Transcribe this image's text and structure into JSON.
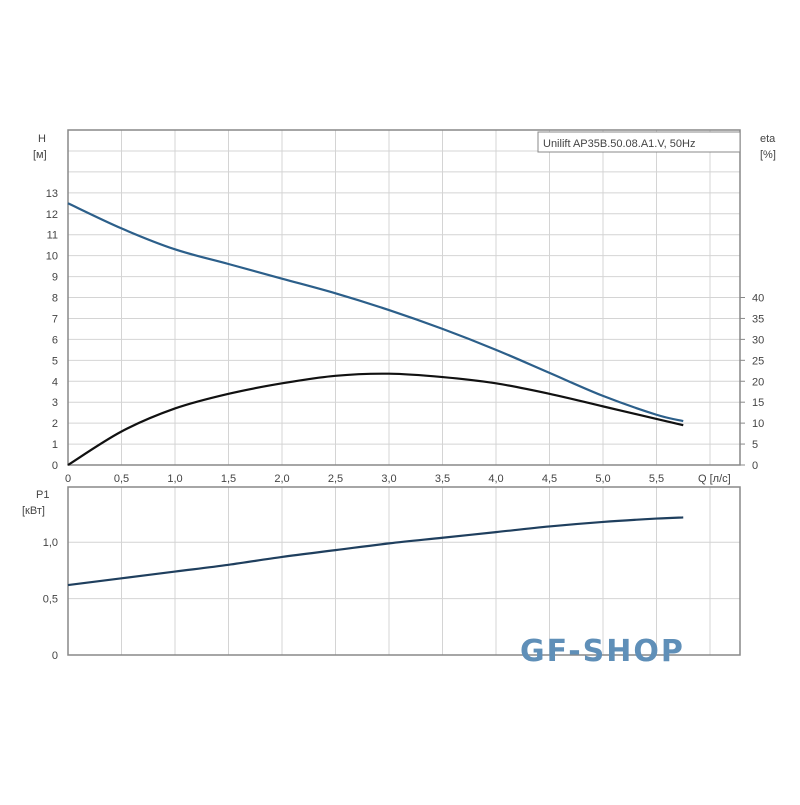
{
  "chart_data": [
    {
      "type": "line",
      "legend_box": "Unilift AP35B.50.08.A1.V, 50Hz",
      "xlabel": "Q [л/с]",
      "ylabel_left": "H",
      "ylabel_left_unit": "[м]",
      "ylabel_right": "eta",
      "ylabel_right_unit": "[%]",
      "xlim": [
        0,
        6.28
      ],
      "ylim_left": [
        0,
        16
      ],
      "ylim_right": [
        0,
        80
      ],
      "grid": true,
      "x_ticks": [
        "0",
        "0,5",
        "1,0",
        "1,5",
        "2,0",
        "2,5",
        "3,0",
        "3,5",
        "4,0",
        "4,5",
        "5,0",
        "5,5"
      ],
      "y_left_ticks": [
        "0",
        "1",
        "2",
        "3",
        "4",
        "5",
        "6",
        "7",
        "8",
        "9",
        "10",
        "11",
        "12",
        "13"
      ],
      "y_right_ticks": [
        "0",
        "5",
        "10",
        "15",
        "20",
        "25",
        "30",
        "35",
        "40"
      ],
      "series": [
        {
          "axis": "left",
          "color": "#2c5f8a",
          "x": [
            0,
            0.5,
            1.0,
            1.5,
            2.0,
            2.5,
            3.0,
            3.5,
            4.0,
            4.5,
            5.0,
            5.5,
            5.75
          ],
          "y": [
            12.5,
            11.3,
            10.3,
            9.6,
            8.9,
            8.2,
            7.4,
            6.5,
            5.5,
            4.4,
            3.3,
            2.4,
            2.1
          ]
        },
        {
          "axis": "right",
          "color": "#111111",
          "x": [
            0,
            0.5,
            1.0,
            1.5,
            2.0,
            2.5,
            3.0,
            3.5,
            4.0,
            4.5,
            5.0,
            5.5,
            5.75
          ],
          "y": [
            0,
            8,
            13.5,
            17,
            19.5,
            21.3,
            21.8,
            21,
            19.5,
            17,
            14,
            11,
            9.5
          ]
        }
      ]
    },
    {
      "type": "line",
      "ylabel": "P1",
      "ylabel_unit": "[кВт]",
      "xlim": [
        0,
        6.28
      ],
      "ylim": [
        0,
        1.49
      ],
      "grid": true,
      "y_ticks": [
        "0",
        "0,5",
        "1,0"
      ],
      "series": [
        {
          "color": "#1f3f5e",
          "x": [
            0,
            0.5,
            1.0,
            1.5,
            2.0,
            2.5,
            3.0,
            3.5,
            4.0,
            4.5,
            5.0,
            5.5,
            5.75
          ],
          "y": [
            0.62,
            0.68,
            0.74,
            0.8,
            0.87,
            0.93,
            0.99,
            1.04,
            1.09,
            1.14,
            1.18,
            1.21,
            1.22
          ]
        }
      ]
    }
  ],
  "watermark": "GF-SHOP"
}
